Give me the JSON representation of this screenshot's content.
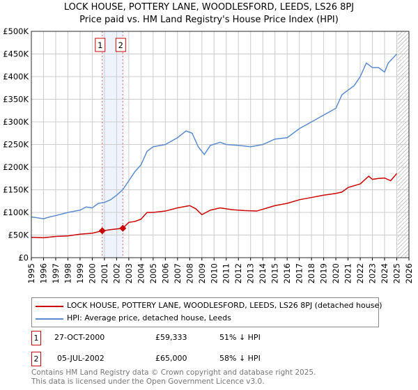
{
  "chart_data": {
    "type": "line",
    "title": "LOCK HOUSE, POTTERY LANE, WOODLESFORD, LEEDS, LS26 8PJ",
    "subtitle": "Price paid vs. HM Land Registry's House Price Index (HPI)",
    "xlim": [
      1995,
      2026
    ],
    "ylim": [
      0,
      500000
    ],
    "x_ticks": [
      "1995",
      "1996",
      "1997",
      "1998",
      "1999",
      "2000",
      "2001",
      "2002",
      "2003",
      "2004",
      "2005",
      "2006",
      "2007",
      "2008",
      "2009",
      "2010",
      "2011",
      "2012",
      "2013",
      "2014",
      "2015",
      "2016",
      "2017",
      "2018",
      "2019",
      "2020",
      "2021",
      "2022",
      "2023",
      "2024",
      "2025",
      "2026"
    ],
    "y_ticks": [
      {
        "v": 0,
        "l": "£0"
      },
      {
        "v": 50000,
        "l": "£50K"
      },
      {
        "v": 100000,
        "l": "£100K"
      },
      {
        "v": 150000,
        "l": "£150K"
      },
      {
        "v": 200000,
        "l": "£200K"
      },
      {
        "v": 250000,
        "l": "£250K"
      },
      {
        "v": 300000,
        "l": "£300K"
      },
      {
        "v": 350000,
        "l": "£350K"
      },
      {
        "v": 400000,
        "l": "£400K"
      },
      {
        "v": 450000,
        "l": "£450K"
      },
      {
        "v": 500000,
        "l": "£500K"
      }
    ],
    "grid": true,
    "series": [
      {
        "name": "LOCK HOUSE, POTTERY LANE, WOODLESFORD, LEEDS, LS26 8PJ (detached house)",
        "color": "#cc0000",
        "x": [
          1995,
          1996,
          1997,
          1998,
          1999,
          2000,
          2000.82,
          2001.5,
          2002.51,
          2003,
          2003.5,
          2004,
          2004.5,
          2005,
          2006,
          2007,
          2008,
          2008.5,
          2009,
          2009.7,
          2010.5,
          2011.5,
          2012.5,
          2013.5,
          2014,
          2015,
          2016,
          2017,
          2018,
          2019,
          2020,
          2020.5,
          2021,
          2022,
          2022.7,
          2023,
          2023.5,
          2024,
          2024.5,
          2025
        ],
        "y": [
          45000,
          44000,
          47000,
          48000,
          52000,
          54000,
          59333,
          62000,
          65000,
          78000,
          80000,
          85000,
          100000,
          100000,
          103000,
          110000,
          115000,
          108000,
          95000,
          105000,
          110000,
          106000,
          104000,
          103000,
          107000,
          115000,
          120000,
          128000,
          133000,
          138000,
          142000,
          145000,
          155000,
          163000,
          180000,
          173000,
          175000,
          176000,
          170000,
          186000
        ]
      },
      {
        "name": "HPI: Average price, detached house, Leeds",
        "color": "#5b8bd0",
        "x": [
          1995,
          1995.5,
          1996,
          1996.5,
          1997,
          1998,
          1999,
          1999.5,
          2000,
          2000.5,
          2001,
          2001.5,
          2002,
          2002.5,
          2003,
          2003.5,
          2004,
          2004.5,
          2005,
          2006,
          2007,
          2007.7,
          2008.2,
          2008.7,
          2009.2,
          2009.7,
          2010.5,
          2011,
          2012,
          2013,
          2014,
          2015,
          2016,
          2017,
          2018,
          2019,
          2020,
          2020.5,
          2021,
          2021.5,
          2022,
          2022.5,
          2023,
          2023.5,
          2024,
          2024.3,
          2025
        ],
        "y": [
          90000,
          88000,
          86000,
          90000,
          93000,
          100000,
          105000,
          112000,
          110000,
          120000,
          122000,
          128000,
          138000,
          150000,
          170000,
          190000,
          205000,
          235000,
          245000,
          250000,
          265000,
          280000,
          275000,
          245000,
          228000,
          248000,
          255000,
          250000,
          248000,
          245000,
          250000,
          262000,
          265000,
          285000,
          300000,
          315000,
          330000,
          360000,
          370000,
          380000,
          400000,
          430000,
          420000,
          420000,
          410000,
          430000,
          450000
        ]
      }
    ],
    "sales": [
      {
        "id": "1",
        "x": 2000.82,
        "y": 59333
      },
      {
        "id": "2",
        "x": 2002.51,
        "y": 65000
      }
    ],
    "future_hatch_from": 2025
  },
  "legend": {
    "property": "LOCK HOUSE, POTTERY LANE, WOODLESFORD, LEEDS, LS26 8PJ (detached house)",
    "hpi": "HPI: Average price, detached house, Leeds"
  },
  "transactions": [
    {
      "num": "1",
      "date": "27-OCT-2000",
      "price": "£59,333",
      "hpi": "51% ↓ HPI"
    },
    {
      "num": "2",
      "date": "05-JUL-2002",
      "price": "£65,000",
      "hpi": "58% ↓ HPI"
    }
  ],
  "footer": {
    "line1": "Contains HM Land Registry data © Crown copyright and database right 2025.",
    "line2": "This data is licensed under the Open Government Licence v3.0."
  }
}
